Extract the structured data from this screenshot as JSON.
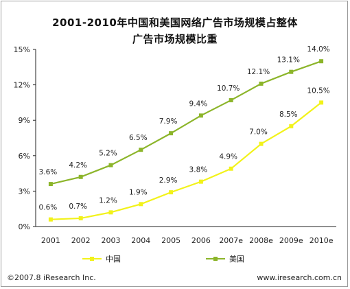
{
  "chart_data": {
    "type": "line",
    "title_line1": "2001-2010年中国和美国网络广告市场规模占整体",
    "title_line2": "广告市场规模比重",
    "categories": [
      "2001",
      "2002",
      "2003",
      "2004",
      "2005",
      "2006",
      "2007e",
      "2008e",
      "2009e",
      "2010e"
    ],
    "yticks": [
      "0%",
      "3%",
      "6%",
      "9%",
      "12%",
      "15%"
    ],
    "ylim": [
      0,
      15
    ],
    "series": [
      {
        "name": "中国",
        "color": "#f2f21a",
        "values": [
          0.6,
          0.7,
          1.2,
          1.9,
          2.9,
          3.8,
          4.9,
          7.0,
          8.5,
          10.5
        ],
        "labels": [
          "0.6%",
          "0.7%",
          "1.2%",
          "1.9%",
          "2.9%",
          "3.8%",
          "4.9%",
          "7.0%",
          "8.5%",
          "10.5%"
        ]
      },
      {
        "name": "美国",
        "color": "#8cb52a",
        "values": [
          3.6,
          4.2,
          5.2,
          6.5,
          7.9,
          9.4,
          10.7,
          12.1,
          13.1,
          14.0
        ],
        "labels": [
          "3.6%",
          "4.2%",
          "5.2%",
          "6.5%",
          "7.9%",
          "9.4%",
          "10.7%",
          "12.1%",
          "13.1%",
          "14.0%"
        ]
      }
    ],
    "grid": false,
    "legend": "bottom"
  },
  "footer": {
    "left": "©2007.8 iResearch Inc.",
    "right": "www.iresearch.com.cn"
  }
}
